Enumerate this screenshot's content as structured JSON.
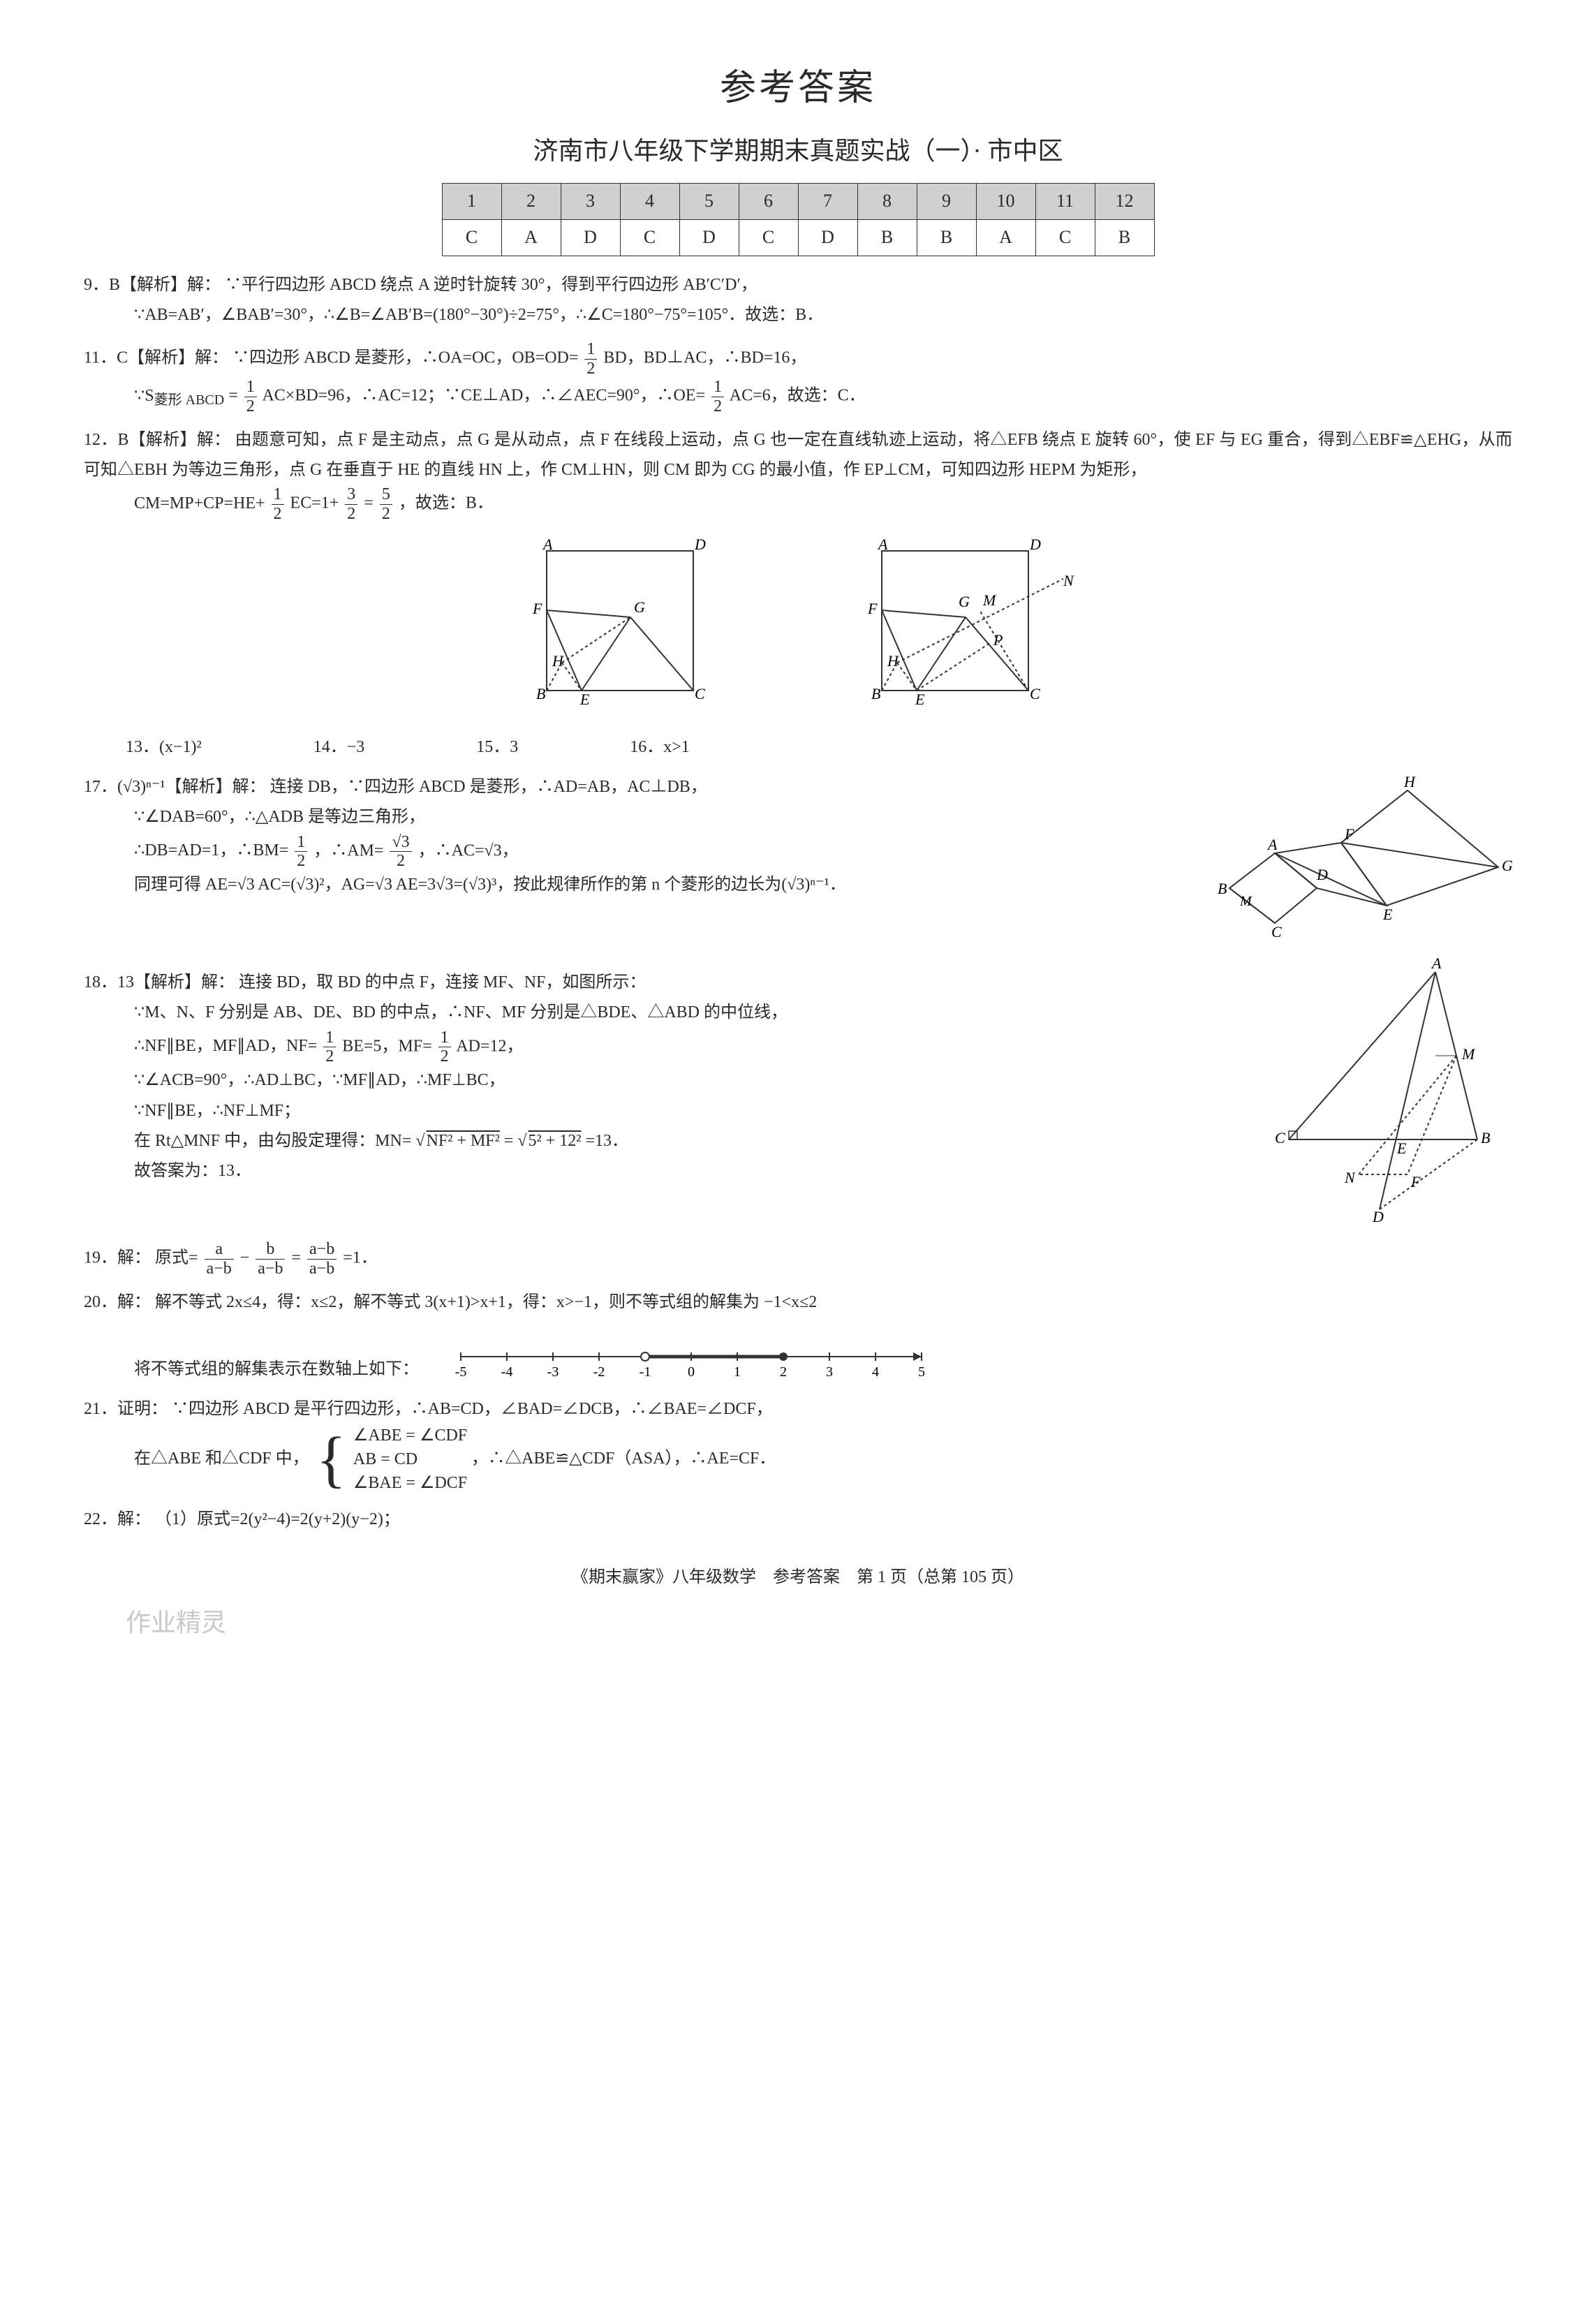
{
  "title": "参考答案",
  "subtitle": "济南市八年级下学期期末真题实战（一）· 市中区",
  "answer_table": {
    "headers": [
      "1",
      "2",
      "3",
      "4",
      "5",
      "6",
      "7",
      "8",
      "9",
      "10",
      "11",
      "12"
    ],
    "values": [
      "C",
      "A",
      "D",
      "C",
      "D",
      "C",
      "D",
      "B",
      "B",
      "A",
      "C",
      "B"
    ]
  },
  "q9": {
    "num": "9．B【解析】解：",
    "text": "∵平行四边形 ABCD 绕点 A 逆时针旋转 30°，得到平行四边形 AB′C′D′，",
    "line2": "∵AB=AB′，∠BAB′=30°，∴∠B=∠AB′B=(180°−30°)÷2=75°，∴∠C=180°−75°=105°．故选：B．"
  },
  "q11": {
    "num": "11．C【解析】解：",
    "line1a": "∵四边形 ABCD 是菱形，∴OA=OC，OB=OD=",
    "line1b": " BD，BD⊥AC，∴BD=16，",
    "line2a": "∵S",
    "line2sub": "菱形 ABCD",
    "line2b": "=",
    "line2c": " AC×BD=96，∴AC=12；∵CE⊥AD，∴∠AEC=90°，∴OE=",
    "line2d": " AC=6，故选：C．"
  },
  "q12": {
    "num": "12．B【解析】解：",
    "line1": "由题意可知，点 F 是主动点，点 G 是从动点，点 F 在线段上运动，点 G 也一定在直线轨迹上运动，将△EFB 绕点 E 旋转 60°，使 EF 与 EG 重合，得到△EBF≌△EHG，从而可知△EBH 为等边三角形，点 G 在垂直于 HE 的直线 HN 上，作 CM⊥HN，则 CM 即为 CG 的最小值，作 EP⊥CM，可知四边形 HEPM 为矩形，",
    "line2a": "CM=MP+CP=HE+",
    "line2b": " EC=1+",
    "line2c": "=",
    "line2d": "，故选：B．"
  },
  "shortq": {
    "q13": "13．(x−1)²",
    "q14": "14．−3",
    "q15": "15．3",
    "q16": "16．x>1"
  },
  "q17": {
    "num": "17．(√3)ⁿ⁻¹【解析】解：",
    "line1": "连接 DB，∵四边形 ABCD 是菱形，∴AD=AB，AC⊥DB，",
    "line2": "∵∠DAB=60°，∴△ADB 是等边三角形，",
    "line3a": "∴DB=AD=1，∴BM=",
    "line3b": "，∴AM=",
    "line3c": "，∴AC=√3，",
    "line4": "同理可得 AE=√3 AC=(√3)²，AG=√3 AE=3√3=(√3)³，按此规律所作的第 n 个菱形的边长为(√3)ⁿ⁻¹．"
  },
  "q18": {
    "num": "18．13【解析】解：",
    "line1": "连接 BD，取 BD 的中点 F，连接 MF、NF，如图所示：",
    "line2": "∵M、N、F 分别是 AB、DE、BD 的中点，∴NF、MF 分别是△BDE、△ABD 的中位线，",
    "line3a": "∴NF∥BE，MF∥AD，NF=",
    "line3b": " BE=5，MF=",
    "line3c": " AD=12，",
    "line4": "∵∠ACB=90°，∴AD⊥BC，∵MF∥AD，∴MF⊥BC，",
    "line5": "∵NF∥BE，∴NF⊥MF；",
    "line6a": "在 Rt△MNF 中，由勾股定理得：MN=",
    "line6root": "NF² + MF²",
    "line6b": "=",
    "line6root2": "5² + 12²",
    "line6c": "=13．",
    "line7": "故答案为：13．"
  },
  "q19": {
    "num": "19．解：",
    "texta": "原式=",
    "textb": "−",
    "textc": "=",
    "textd": "=1．"
  },
  "q20": {
    "num": "20．解：",
    "line1": "解不等式 2x≤4，得：x≤2，解不等式 3(x+1)>x+1，得：x>−1，则不等式组的解集为 −1<x≤2",
    "line2": "将不等式组的解集表示在数轴上如下："
  },
  "q21": {
    "num": "21．证明：",
    "line1": "∵四边形 ABCD 是平行四边形，∴AB=CD，∠BAD=∠DCB，∴∠BAE=∠DCF，",
    "line2a": "在△ABE 和△CDF 中，",
    "brace1": "∠ABE = ∠CDF",
    "brace2": "AB = CD",
    "brace3": "∠BAE = ∠DCF",
    "line2b": "，∴△ABE≌△CDF（ASA），∴AE=CF．"
  },
  "q22": {
    "num": "22．解：",
    "text": "（1）原式=2(y²−4)=2(y+2)(y−2)；"
  },
  "footer": "《期末赢家》八年级数学　参考答案　第 1 页（总第 105 页）",
  "watermark": "作业精灵",
  "figures": {
    "fig12": {
      "labels": [
        "A",
        "B",
        "C",
        "D",
        "E",
        "F",
        "G",
        "H"
      ],
      "labels2": [
        "A",
        "B",
        "C",
        "D",
        "E",
        "F",
        "G",
        "H",
        "M",
        "N",
        "P"
      ],
      "stroke": "#333333",
      "dash": "4,4"
    },
    "fig17": {
      "labels": [
        "A",
        "B",
        "C",
        "D",
        "E",
        "F",
        "G",
        "H",
        "M"
      ],
      "stroke": "#333333"
    },
    "fig18": {
      "labels": [
        "A",
        "B",
        "C",
        "D",
        "E",
        "F",
        "M",
        "N"
      ],
      "stroke": "#333333",
      "dash": "4,4"
    },
    "numberline": {
      "min": -5,
      "max": 5,
      "step": 1,
      "open": -1,
      "closed": 2,
      "stroke": "#333333"
    }
  },
  "fracs": {
    "half_n": "1",
    "half_d": "2",
    "three_half_n": "3",
    "three_half_d": "2",
    "five_half_n": "5",
    "five_half_d": "2",
    "sqrt3_half_n": "√3",
    "sqrt3_half_d": "2",
    "a_ab_n": "a",
    "a_ab_d": "a−b",
    "b_ab_n": "b",
    "b_ab_d": "a−b",
    "ab_ab_n": "a−b",
    "ab_ab_d": "a−b"
  }
}
